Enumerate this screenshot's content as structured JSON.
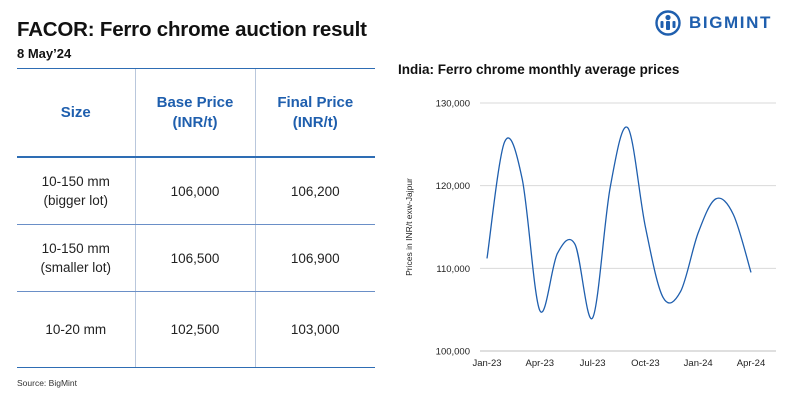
{
  "header": {
    "title": "FACOR: Ferro chrome auction result",
    "date": "8 May’24",
    "logo_text": "BIGMINT",
    "logo_icon": "bigmint-globe-icon",
    "brand_color": "#1f5fae"
  },
  "table": {
    "columns": [
      {
        "line1": "Size",
        "line2": ""
      },
      {
        "line1": "Base Price",
        "line2": "(INR/t)"
      },
      {
        "line1": "Final Price",
        "line2": "(INR/t)"
      }
    ],
    "rows": [
      {
        "size_line1": "10-150 mm",
        "size_line2": "(bigger lot)",
        "base": "106,000",
        "final": "106,200"
      },
      {
        "size_line1": "10-150 mm",
        "size_line2": "(smaller lot)",
        "base": "106,500",
        "final": "106,900"
      },
      {
        "size_line1": "10-20 mm",
        "size_line2": "",
        "base": "102,500",
        "final": "103,000"
      }
    ]
  },
  "source": "Source: BigMint",
  "chart_data": {
    "type": "line",
    "title": "India: Ferro chrome monthly average prices",
    "ylabel": "Prices in INR/t exw-Jajpur",
    "xlabel": "",
    "ylim": [
      100000,
      130000
    ],
    "yticks": [
      100000,
      110000,
      120000,
      130000
    ],
    "ytick_labels": [
      "100,000",
      "110,000",
      "120,000",
      "130,000"
    ],
    "x": [
      "Jan-23",
      "Feb-23",
      "Mar-23",
      "Apr-23",
      "May-23",
      "Jun-23",
      "Jul-23",
      "Aug-23",
      "Sep-23",
      "Oct-23",
      "Nov-23",
      "Dec-23",
      "Jan-24",
      "Feb-24",
      "Mar-24",
      "Apr-24"
    ],
    "xtick_labels": [
      "Jan-23",
      "Apr-23",
      "Jul-23",
      "Oct-23",
      "Jan-24",
      "Apr-24"
    ],
    "grid": true,
    "series": [
      {
        "color": "#1f5fae",
        "values": [
          111200,
          125300,
          120800,
          104900,
          111800,
          112900,
          104000,
          119800,
          127000,
          115000,
          106500,
          107200,
          114300,
          118400,
          116500,
          109500
        ]
      }
    ]
  }
}
